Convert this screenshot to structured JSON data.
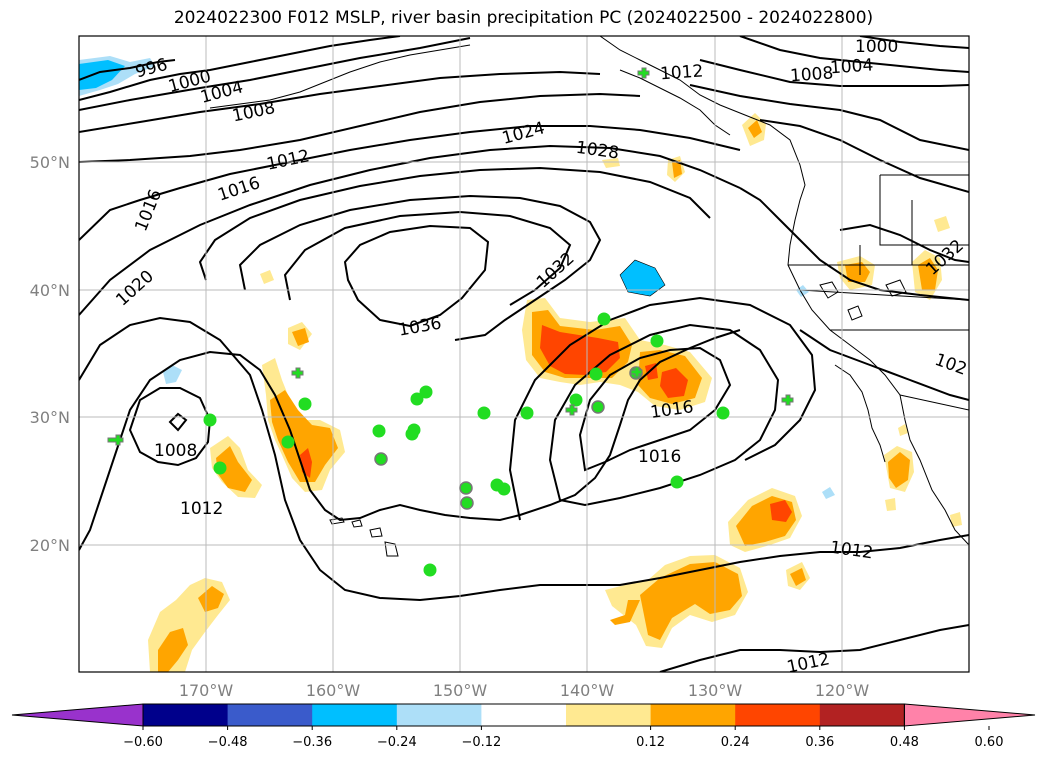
{
  "title": "2024022300 F012 MSLP, river basin precipitation PC (2024022500 - 2024022800)",
  "lat_labels": [
    "50°N",
    "40°N",
    "30°N",
    "20°N"
  ],
  "lon_labels": [
    "170°W",
    "160°W",
    "150°W",
    "140°W",
    "130°W",
    "120°W"
  ],
  "contour_labels": [
    "996",
    "1000",
    "1004",
    "1008",
    "1012",
    "1016",
    "1020",
    "1024",
    "1028",
    "1032",
    "1036",
    "1000",
    "1004",
    "1008",
    "1012",
    "1016",
    "1012",
    "1012",
    "1016",
    "1008",
    "1012",
    "1032",
    "102"
  ],
  "colorbar": {
    "ticks": [
      "−0.60",
      "−0.48",
      "−0.36",
      "−0.24",
      "−0.12",
      "0.12",
      "0.24",
      "0.36",
      "0.48",
      "0.60"
    ],
    "colors": [
      "#9932CC",
      "#00008B",
      "#3A5BCB",
      "#00BFFF",
      "#ADDFF8",
      "#FFFFFF",
      "#FFE991",
      "#FFA500",
      "#FF4500",
      "#B22222",
      "#FF82A9"
    ]
  },
  "colors": {
    "marker": "#22DD22",
    "marker_edge": "#777777",
    "contour": "#000000",
    "grid": "#BBBBBB"
  }
}
